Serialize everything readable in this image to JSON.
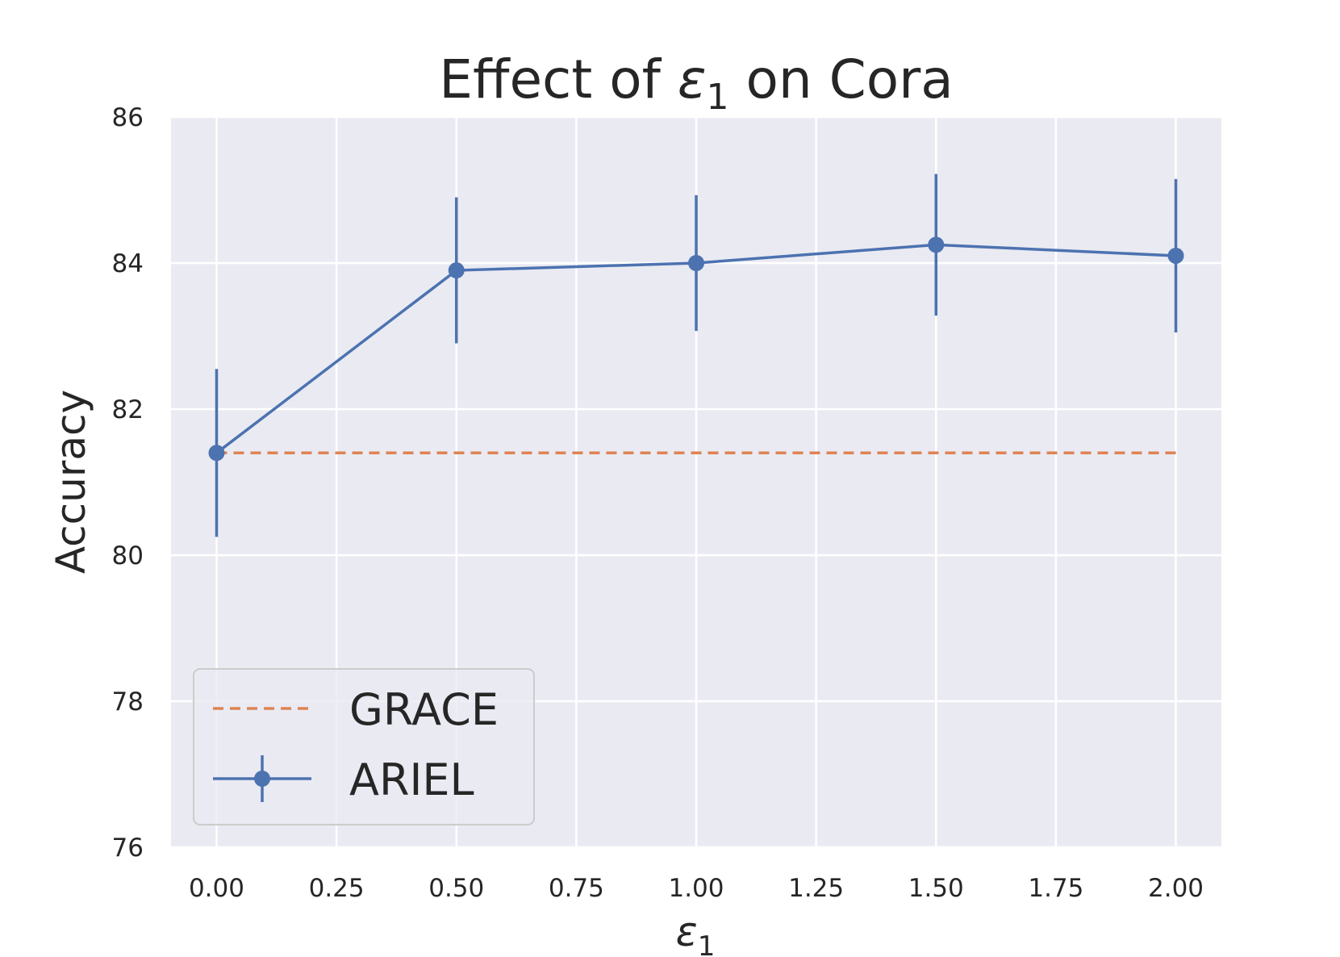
{
  "chart_data": {
    "type": "line",
    "title": "Effect of ε1 on Cora",
    "title_prefix": "Effect of ",
    "title_symbol": "ε",
    "title_subscript": "1",
    "title_suffix": " on Cora",
    "xlabel_symbol": "ε",
    "xlabel_subscript": "1",
    "ylabel": "Accuracy",
    "xlim": [
      -0.095,
      2.095
    ],
    "ylim": [
      76,
      86
    ],
    "xticks": [
      0.0,
      0.25,
      0.5,
      0.75,
      1.0,
      1.25,
      1.5,
      1.75,
      2.0
    ],
    "xtick_labels": [
      "0.00",
      "0.25",
      "0.50",
      "0.75",
      "1.00",
      "1.25",
      "1.50",
      "1.75",
      "2.00"
    ],
    "yticks": [
      76,
      78,
      80,
      82,
      84,
      86
    ],
    "ytick_labels": [
      "76",
      "78",
      "80",
      "82",
      "84",
      "86"
    ],
    "grid": true,
    "legend_position": "lower-left",
    "series": [
      {
        "name": "GRACE",
        "style": "dashed",
        "color": "#dd8452",
        "x": [
          0.0,
          2.0
        ],
        "values": [
          81.4,
          81.4
        ]
      },
      {
        "name": "ARIEL",
        "style": "solid-marker-errorbar",
        "color": "#4c72b0",
        "x": [
          0.0,
          0.5,
          1.0,
          1.5,
          2.0
        ],
        "values": [
          81.4,
          83.9,
          84.0,
          84.25,
          84.1
        ],
        "error": [
          1.15,
          1.0,
          0.93,
          0.97,
          1.05
        ]
      }
    ],
    "colors": {
      "axes_background": "#eaeaf2",
      "grid": "#ffffff",
      "text": "#262626"
    }
  }
}
